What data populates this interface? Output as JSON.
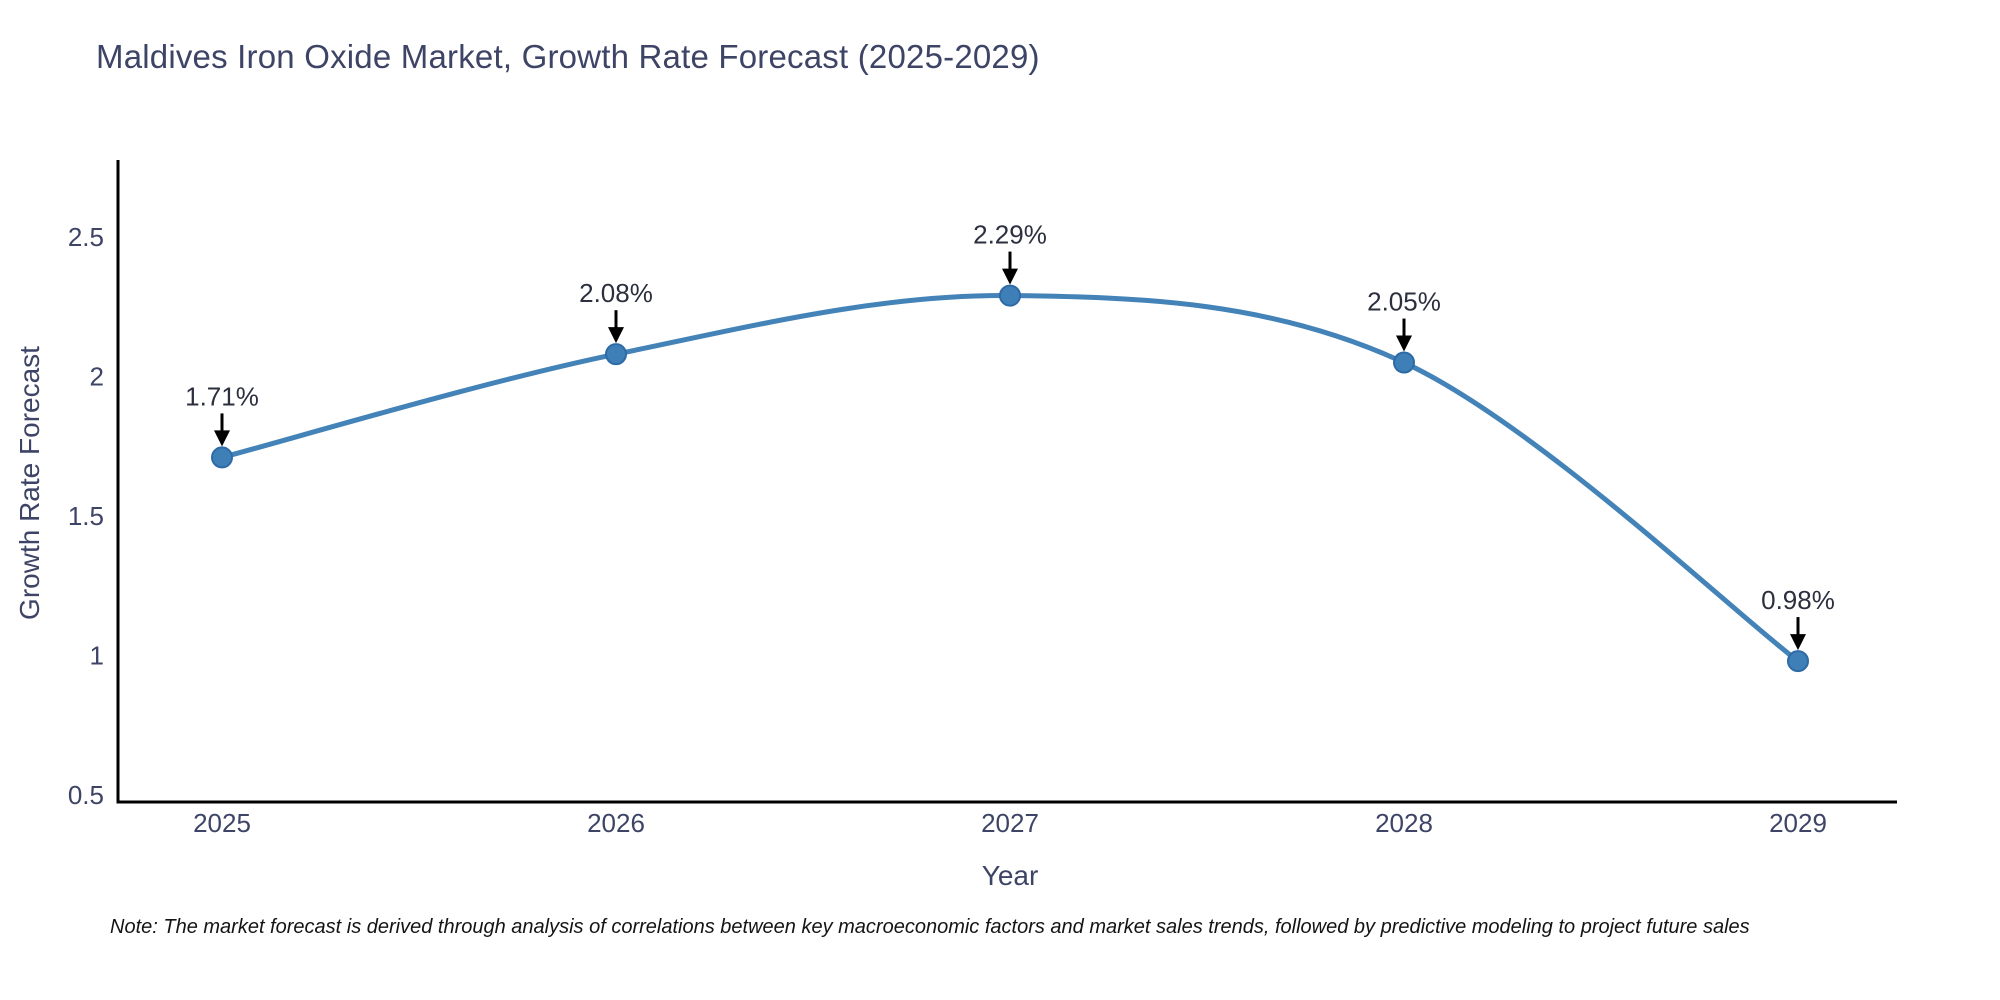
{
  "chart_data": {
    "type": "line",
    "curve": "spline",
    "title": "Maldives Iron Oxide Market, Growth Rate Forecast (2025-2029)",
    "xlabel": "Year",
    "ylabel": "Growth Rate Forecast",
    "x": [
      "2025",
      "2026",
      "2027",
      "2028",
      "2029"
    ],
    "values": [
      1.71,
      2.08,
      2.29,
      2.05,
      0.98
    ],
    "point_labels": [
      "1.71%",
      "2.08%",
      "2.29%",
      "2.05%",
      "0.98%"
    ],
    "ytick_labels": [
      "0.5",
      "1",
      "1.5",
      "2",
      "2.5"
    ],
    "ytick_values": [
      0.5,
      1.0,
      1.5,
      2.0,
      2.5
    ],
    "ylim": [
      0.5,
      2.78
    ],
    "grid": false,
    "legend": "none",
    "colors": {
      "line": "#4383b8",
      "marker_fill": "#3f7fb7",
      "marker_edge": "#2e6aa5",
      "axis": "#000000",
      "tick_text": "#3e4466",
      "title_text": "#3e4466",
      "annotation_text": "#2b2f3e",
      "arrow": "#000000"
    }
  },
  "note": "Note: The market forecast is derived through analysis of correlations between key macroeconomic factors and market sales trends, followed by predictive modeling to project future sales"
}
